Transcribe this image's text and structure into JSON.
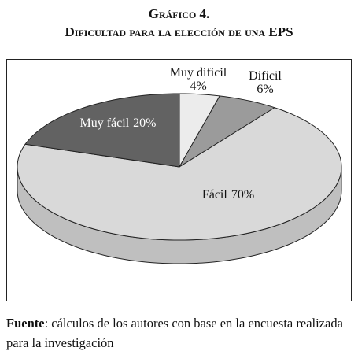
{
  "chart_data": {
    "type": "pie3d",
    "title": "Gráfico 4.",
    "subtitle": "Dificultad para la elección de una EPS",
    "categories": [
      "Muy dificil",
      "Dificil",
      "Fácil",
      "Muy fácil"
    ],
    "values": [
      4,
      6,
      70,
      20
    ],
    "value_labels": [
      "4%",
      "6%",
      "70%",
      "20%"
    ],
    "colors": [
      "#ececec",
      "#9b9b9b",
      "#d9d9d9",
      "#626262"
    ],
    "source_label": "Fuente",
    "source_text": ": cálculos de los autores con base en la encuesta realizada para la investigación"
  }
}
